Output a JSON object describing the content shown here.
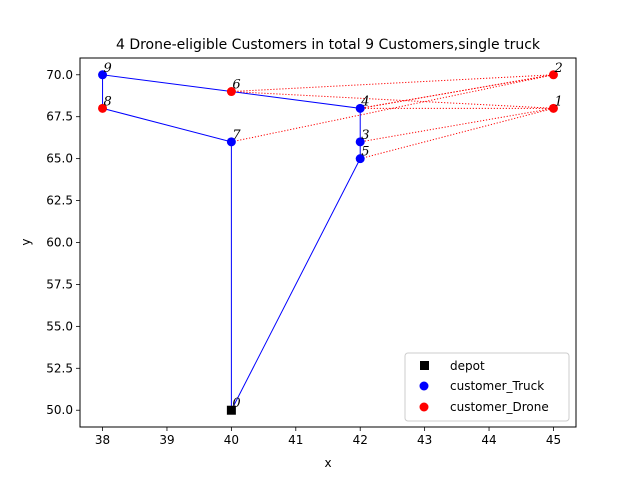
{
  "chart_data": {
    "type": "scatter",
    "title": "4 Drone-eligible Customers in total 9 Customers,single truck",
    "xlabel": "x",
    "ylabel": "y",
    "xlim": [
      37.65,
      45.35
    ],
    "ylim": [
      49.0,
      71.0
    ],
    "xticks": [
      38,
      39,
      40,
      41,
      42,
      43,
      44,
      45
    ],
    "yticks": [
      50.0,
      52.5,
      55.0,
      57.5,
      60.0,
      62.5,
      65.0,
      67.5,
      70.0
    ],
    "xtick_labels": [
      "38",
      "39",
      "40",
      "41",
      "42",
      "43",
      "44",
      "45"
    ],
    "ytick_labels": [
      "50.0",
      "52.5",
      "55.0",
      "57.5",
      "60.0",
      "62.5",
      "65.0",
      "67.5",
      "70.0"
    ],
    "grid": false,
    "legend_position": "lower-right",
    "colors": {
      "truck": "#0000ff",
      "drone": "#ff0000",
      "depot": "#000000"
    },
    "nodes": [
      {
        "id": "0",
        "x": 40,
        "y": 50,
        "kind": "depot"
      },
      {
        "id": "1",
        "x": 45,
        "y": 68,
        "kind": "drone"
      },
      {
        "id": "2",
        "x": 45,
        "y": 70,
        "kind": "drone"
      },
      {
        "id": "3",
        "x": 42,
        "y": 66,
        "kind": "truck"
      },
      {
        "id": "4",
        "x": 42,
        "y": 68,
        "kind": "truck"
      },
      {
        "id": "5",
        "x": 42,
        "y": 65,
        "kind": "truck"
      },
      {
        "id": "6",
        "x": 40,
        "y": 69,
        "kind": "drone"
      },
      {
        "id": "7",
        "x": 40,
        "y": 66,
        "kind": "truck"
      },
      {
        "id": "8",
        "x": 38,
        "y": 68,
        "kind": "drone"
      },
      {
        "id": "9",
        "x": 38,
        "y": 70,
        "kind": "truck"
      }
    ],
    "truck_route": [
      "0",
      "5",
      "3",
      "4",
      "6",
      "9",
      "8",
      "7",
      "0"
    ],
    "drone_sorties": [
      [
        "6",
        "2",
        "4"
      ],
      [
        "6",
        "1",
        "4"
      ],
      [
        "7",
        "2",
        "4"
      ],
      [
        "5",
        "1",
        "3"
      ]
    ],
    "legend": [
      {
        "label": "depot",
        "marker": "square",
        "color": "#000000"
      },
      {
        "label": "customer_Truck",
        "marker": "circle",
        "color": "#0000ff"
      },
      {
        "label": "customer_Drone",
        "marker": "circle",
        "color": "#ff0000"
      }
    ]
  }
}
